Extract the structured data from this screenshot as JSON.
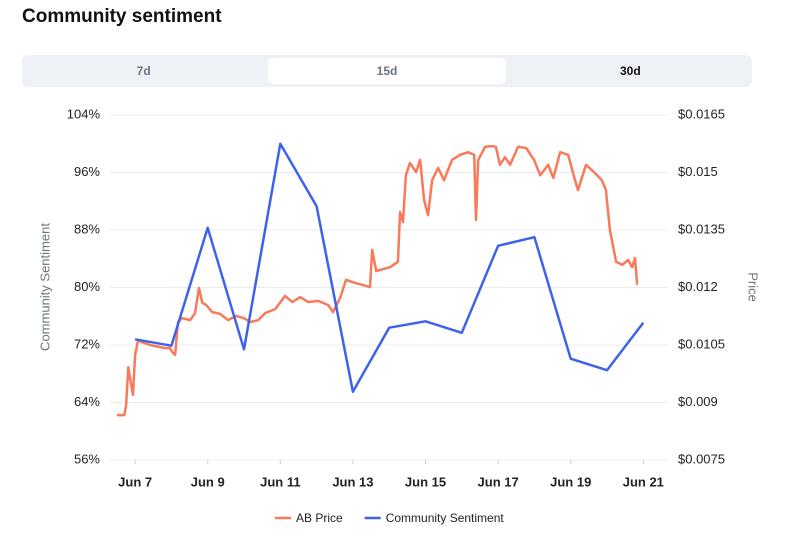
{
  "header": {
    "title": "Community sentiment"
  },
  "tabs": [
    "7d",
    "15d",
    "30d"
  ],
  "chart_data": {
    "type": "line",
    "ylabel": "Community Sentiment",
    "y2label": "Price",
    "xlim": [
      6.5,
      21.68
    ],
    "xticks": [
      {
        "value": 7,
        "label": "Jun 7"
      },
      {
        "value": 9,
        "label": "Jun 9"
      },
      {
        "value": 11,
        "label": "Jun 11"
      },
      {
        "value": 13,
        "label": "Jun 13"
      },
      {
        "value": 15,
        "label": "Jun 15"
      },
      {
        "value": 17,
        "label": "Jun 17"
      },
      {
        "value": 19,
        "label": "Jun 19"
      },
      {
        "value": 21,
        "label": "Jun 21"
      }
    ],
    "ylim": [
      56,
      104
    ],
    "yticks": [
      {
        "value": 56,
        "label": "56%"
      },
      {
        "value": 64,
        "label": "64%"
      },
      {
        "value": 72,
        "label": "72%"
      },
      {
        "value": 80,
        "label": "80%"
      },
      {
        "value": 88,
        "label": "88%"
      },
      {
        "value": 96,
        "label": "96%"
      },
      {
        "value": 104,
        "label": "104%"
      }
    ],
    "y2lim": [
      0.0075,
      0.0165
    ],
    "y2ticks": [
      {
        "value": 0.0075,
        "label": "$0.0075"
      },
      {
        "value": 0.009,
        "label": "$0.009"
      },
      {
        "value": 0.0105,
        "label": "$0.0105"
      },
      {
        "value": 0.012,
        "label": "$0.012"
      },
      {
        "value": 0.0135,
        "label": "$0.0135"
      },
      {
        "value": 0.015,
        "label": "$0.015"
      },
      {
        "value": 0.0165,
        "label": "$0.0165"
      }
    ],
    "grid": true,
    "series": [
      {
        "name": "AB Price",
        "color": "#f87a5a",
        "axis": "y2",
        "x": [
          6.5,
          6.7,
          6.75,
          6.81,
          6.89,
          6.94,
          7.0,
          7.08,
          7.17,
          7.41,
          7.83,
          7.96,
          8.02,
          8.1,
          8.18,
          8.29,
          8.52,
          8.65,
          8.76,
          8.85,
          8.96,
          9.12,
          9.34,
          9.56,
          9.78,
          10.0,
          10.17,
          10.39,
          10.58,
          10.86,
          11.13,
          11.33,
          11.55,
          11.77,
          12.04,
          12.32,
          12.45,
          12.65,
          12.81,
          13.06,
          13.25,
          13.47,
          13.53,
          13.64,
          14.02,
          14.24,
          14.3,
          14.38,
          14.46,
          14.57,
          14.74,
          14.85,
          14.96,
          15.07,
          15.18,
          15.35,
          15.51,
          15.73,
          15.95,
          16.17,
          16.34,
          16.39,
          16.45,
          16.64,
          16.83,
          16.94,
          17.05,
          17.19,
          17.33,
          17.55,
          17.77,
          17.99,
          18.16,
          18.38,
          18.52,
          18.71,
          18.93,
          19.1,
          19.2,
          19.42,
          19.64,
          19.86,
          19.97,
          20.08,
          20.25,
          20.42,
          20.58,
          20.69,
          20.77,
          20.83
        ],
        "values": [
          0.00867,
          0.00867,
          0.00893,
          0.00992,
          0.00946,
          0.0092,
          0.01024,
          0.01063,
          0.01058,
          0.0105,
          0.01042,
          0.01042,
          0.01032,
          0.01024,
          0.0111,
          0.0112,
          0.01115,
          0.01133,
          0.01199,
          0.0116,
          0.01154,
          0.01136,
          0.01131,
          0.01115,
          0.01126,
          0.0112,
          0.0111,
          0.01115,
          0.01133,
          0.01144,
          0.01178,
          0.01162,
          0.01175,
          0.01162,
          0.01165,
          0.01154,
          0.01136,
          0.01173,
          0.0122,
          0.01212,
          0.01207,
          0.01201,
          0.01298,
          0.01243,
          0.01253,
          0.01267,
          0.01397,
          0.01371,
          0.01493,
          0.01525,
          0.01501,
          0.01533,
          0.01428,
          0.01389,
          0.0148,
          0.01512,
          0.0148,
          0.01533,
          0.01546,
          0.01553,
          0.01546,
          0.01376,
          0.01533,
          0.01567,
          0.01569,
          0.01567,
          0.0152,
          0.0154,
          0.0152,
          0.01567,
          0.01564,
          0.01533,
          0.01493,
          0.0152,
          0.01486,
          0.01553,
          0.01546,
          0.01486,
          0.01454,
          0.0152,
          0.01501,
          0.0148,
          0.01454,
          0.0135,
          0.01267,
          0.01259,
          0.01272,
          0.01253,
          0.01277,
          0.01207
        ]
      },
      {
        "name": "Community Sentiment",
        "color": "#3d63eb",
        "x": [
          7,
          8,
          9,
          10,
          11,
          12,
          13,
          14,
          15,
          16,
          17,
          18,
          19,
          20,
          21
        ],
        "values": [
          72.8,
          71.9,
          88.3,
          71.4,
          100.0,
          91.3,
          65.5,
          74.4,
          75.3,
          73.7,
          85.8,
          87.0,
          70.1,
          68.5,
          75.1
        ]
      }
    ]
  }
}
